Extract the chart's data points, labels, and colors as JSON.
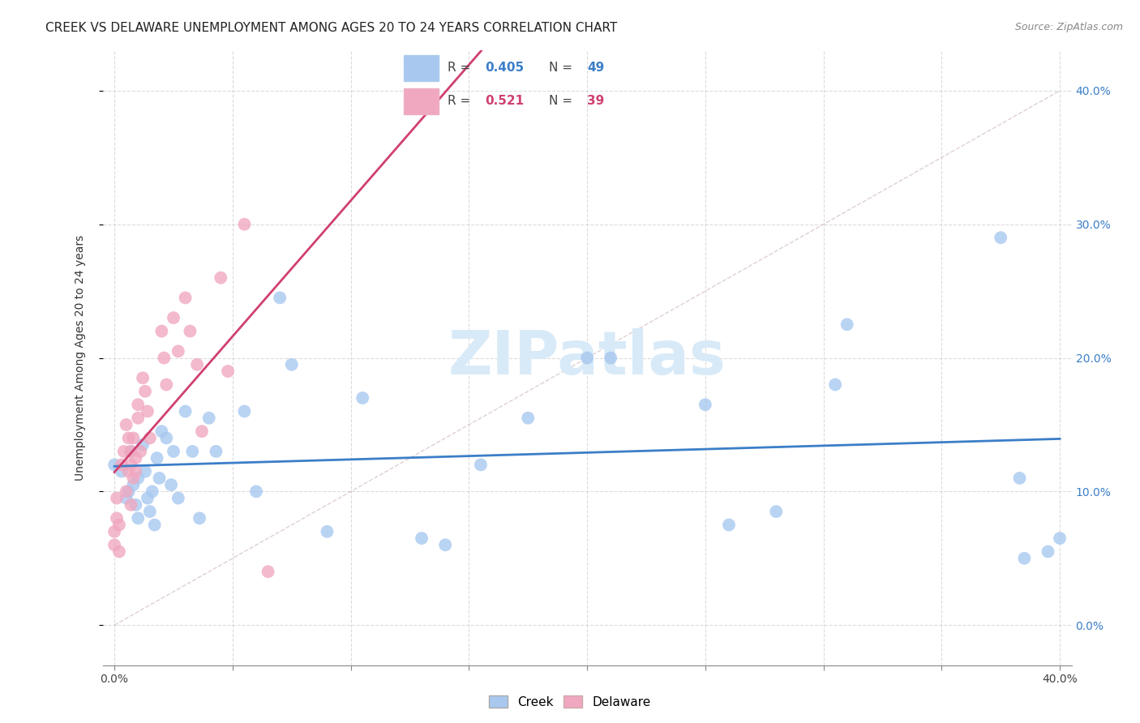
{
  "title": "CREEK VS DELAWARE UNEMPLOYMENT AMONG AGES 20 TO 24 YEARS CORRELATION CHART",
  "source": "Source: ZipAtlas.com",
  "ylabel": "Unemployment Among Ages 20 to 24 years",
  "xlim": [
    -0.005,
    0.405
  ],
  "ylim": [
    -0.03,
    0.43
  ],
  "xtick_vals": [
    0.0,
    0.05,
    0.1,
    0.15,
    0.2,
    0.25,
    0.3,
    0.35,
    0.4
  ],
  "ytick_vals": [
    0.0,
    0.1,
    0.2,
    0.3,
    0.4
  ],
  "creek_R": 0.405,
  "creek_N": 49,
  "delaware_R": 0.521,
  "delaware_N": 39,
  "creek_color": "#a8c8f0",
  "creek_line_color": "#3b7ec8",
  "delaware_color": "#f0a8c0",
  "delaware_line_color": "#d04070",
  "diagonal_color": "#c8b0b8",
  "watermark_color": "#d8eaf8",
  "title_fontsize": 11,
  "axis_label_fontsize": 10,
  "tick_fontsize": 10,
  "source_fontsize": 9,
  "creek_x": [
    0.0,
    0.003,
    0.005,
    0.006,
    0.007,
    0.008,
    0.009,
    0.01,
    0.01,
    0.012,
    0.013,
    0.014,
    0.015,
    0.016,
    0.017,
    0.018,
    0.019,
    0.02,
    0.022,
    0.024,
    0.025,
    0.027,
    0.03,
    0.033,
    0.036,
    0.04,
    0.043,
    0.055,
    0.06,
    0.07,
    0.075,
    0.09,
    0.105,
    0.13,
    0.14,
    0.155,
    0.175,
    0.2,
    0.21,
    0.25,
    0.26,
    0.28,
    0.305,
    0.31,
    0.375,
    0.383,
    0.385,
    0.395,
    0.4
  ],
  "creek_y": [
    0.12,
    0.115,
    0.095,
    0.1,
    0.13,
    0.105,
    0.09,
    0.08,
    0.11,
    0.135,
    0.115,
    0.095,
    0.085,
    0.1,
    0.075,
    0.125,
    0.11,
    0.145,
    0.14,
    0.105,
    0.13,
    0.095,
    0.16,
    0.13,
    0.08,
    0.155,
    0.13,
    0.16,
    0.1,
    0.245,
    0.195,
    0.07,
    0.17,
    0.065,
    0.06,
    0.12,
    0.155,
    0.2,
    0.2,
    0.165,
    0.075,
    0.085,
    0.18,
    0.225,
    0.29,
    0.11,
    0.05,
    0.055,
    0.065
  ],
  "delaware_x": [
    0.0,
    0.0,
    0.001,
    0.001,
    0.002,
    0.002,
    0.003,
    0.004,
    0.005,
    0.005,
    0.006,
    0.006,
    0.007,
    0.007,
    0.007,
    0.008,
    0.008,
    0.009,
    0.009,
    0.01,
    0.01,
    0.011,
    0.012,
    0.013,
    0.014,
    0.015,
    0.02,
    0.021,
    0.022,
    0.025,
    0.027,
    0.03,
    0.032,
    0.035,
    0.037,
    0.045,
    0.048,
    0.055,
    0.065
  ],
  "delaware_y": [
    0.07,
    0.06,
    0.08,
    0.095,
    0.075,
    0.055,
    0.12,
    0.13,
    0.15,
    0.1,
    0.14,
    0.115,
    0.13,
    0.12,
    0.09,
    0.14,
    0.11,
    0.125,
    0.115,
    0.165,
    0.155,
    0.13,
    0.185,
    0.175,
    0.16,
    0.14,
    0.22,
    0.2,
    0.18,
    0.23,
    0.205,
    0.245,
    0.22,
    0.195,
    0.145,
    0.26,
    0.19,
    0.3,
    0.04
  ]
}
